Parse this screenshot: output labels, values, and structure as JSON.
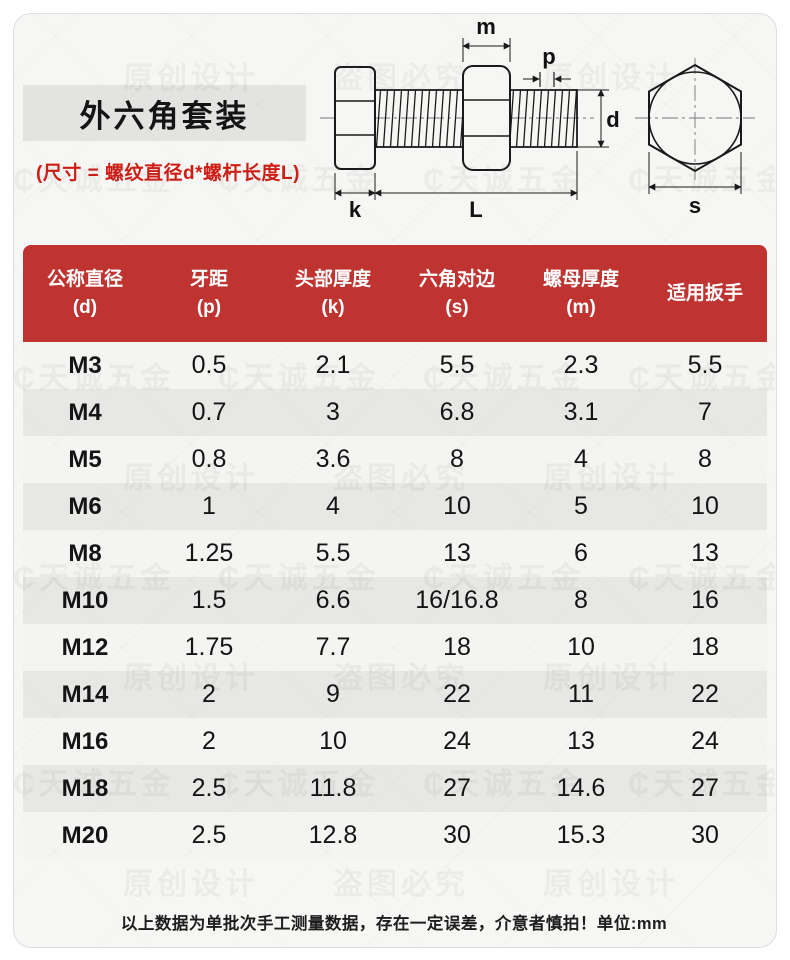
{
  "page": {
    "title": "外六角套装",
    "subtitle": "(尺寸 = 螺纹直径d*螺杆长度L)",
    "footer": "以上数据为单批次手工测量数据，存在一定误差，介意者慎拍！单位:mm"
  },
  "diagram": {
    "labels": {
      "m": "m",
      "p": "p",
      "d": "d",
      "k": "k",
      "L": "L",
      "s": "s"
    }
  },
  "table": {
    "headers": [
      {
        "line1": "公称直径",
        "line2": "(d)"
      },
      {
        "line1": "牙距",
        "line2": "(p)"
      },
      {
        "line1": "头部厚度",
        "line2": "(k)"
      },
      {
        "line1": "六角对边",
        "line2": "(s)"
      },
      {
        "line1": "螺母厚度",
        "line2": "(m)"
      },
      {
        "line1": "适用扳手",
        "line2": ""
      }
    ],
    "rows": [
      [
        "M3",
        "0.5",
        "2.1",
        "5.5",
        "2.3",
        "5.5"
      ],
      [
        "M4",
        "0.7",
        "3",
        "6.8",
        "3.1",
        "7"
      ],
      [
        "M5",
        "0.8",
        "3.6",
        "8",
        "4",
        "8"
      ],
      [
        "M6",
        "1",
        "4",
        "10",
        "5",
        "10"
      ],
      [
        "M8",
        "1.25",
        "5.5",
        "13",
        "6",
        "13"
      ],
      [
        "M10",
        "1.5",
        "6.6",
        "16/16.8",
        "8",
        "16"
      ],
      [
        "M12",
        "1.75",
        "7.7",
        "18",
        "10",
        "18"
      ],
      [
        "M14",
        "2",
        "9",
        "22",
        "11",
        "22"
      ],
      [
        "M16",
        "2",
        "10",
        "24",
        "13",
        "24"
      ],
      [
        "M18",
        "2.5",
        "11.8",
        "27",
        "14.6",
        "27"
      ],
      [
        "M20",
        "2.5",
        "12.8",
        "30",
        "15.3",
        "30"
      ]
    ]
  },
  "watermarks": [
    "₵天诚五金",
    "原创设计",
    "盗图必究"
  ],
  "colors": {
    "header_red": "#bf3430",
    "subtitle_red": "#cf1c15",
    "card_bg": "#f6f6f4",
    "row_light": "#f4f4f2",
    "row_alt": "#e7e7e5",
    "badge_gray": "#e3e3e1"
  }
}
